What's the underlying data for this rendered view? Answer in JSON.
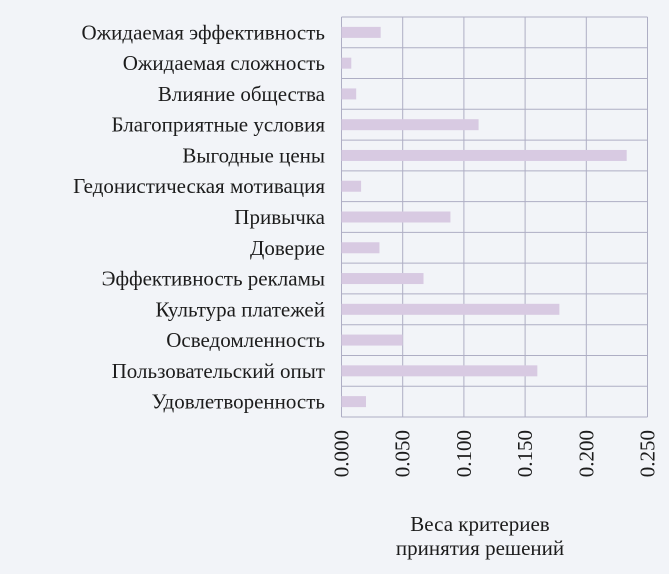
{
  "chart_data": {
    "type": "bar",
    "orientation": "horizontal",
    "categories": [
      "Ожидаемая эффективность",
      "Ожидаемая сложность",
      "Влияние общества",
      "Благоприятные условия",
      "Выгодные цены",
      "Гедонистическая мотивация",
      "Привычка",
      "Доверие",
      "Эффективность рекламы",
      "Культура платежей",
      "Осведомленность",
      "Пользовательский опыт",
      "Удовлетворенность"
    ],
    "values": [
      0.032,
      0.008,
      0.012,
      0.112,
      0.233,
      0.016,
      0.089,
      0.031,
      0.067,
      0.178,
      0.05,
      0.16,
      0.02
    ],
    "xlabel_lines": [
      "Веса критериев",
      "принятия решений"
    ],
    "ylabel": "",
    "xlim": [
      0,
      0.25
    ],
    "xticks": [
      0,
      0.05,
      0.1,
      0.15,
      0.2,
      0.25
    ],
    "xtick_labels": [
      "0.000",
      "0.050",
      "0.100",
      "0.150",
      "0.200",
      "0.250"
    ],
    "grid": true,
    "legend": "none",
    "colors": {
      "bar": "#d8cae2",
      "grid": "#aeaec4",
      "background": "#f2f4f8",
      "text": "#1c1c1c"
    }
  }
}
